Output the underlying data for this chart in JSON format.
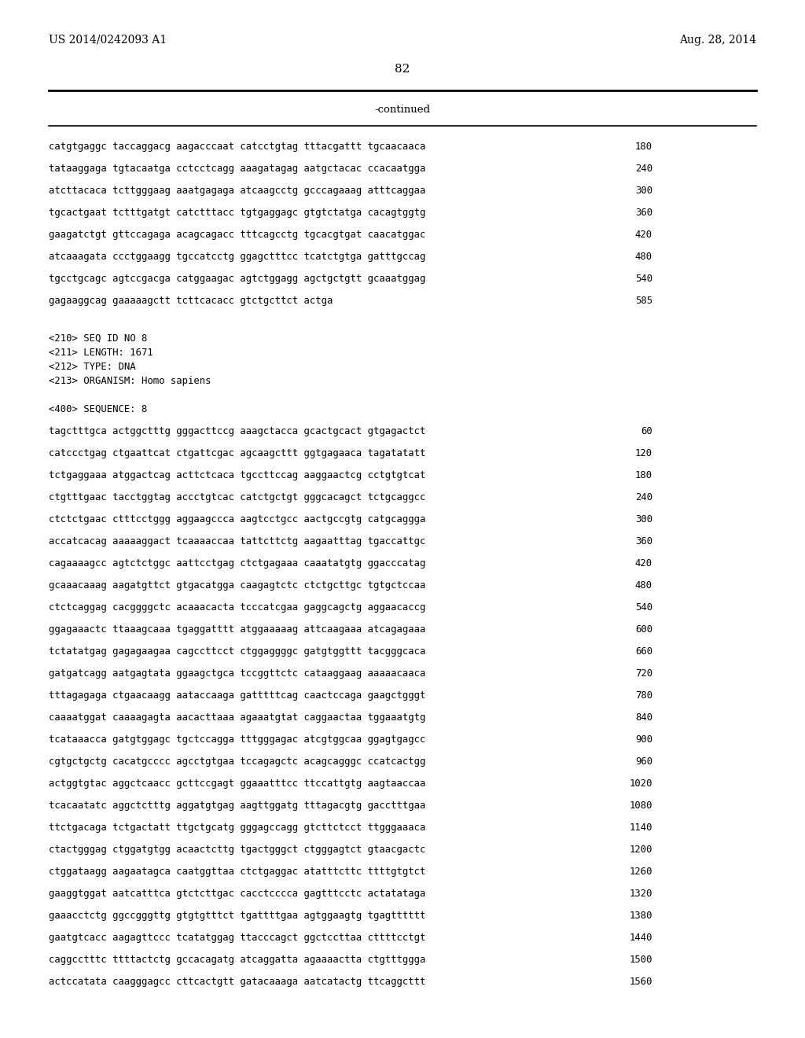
{
  "header_left": "US 2014/0242093 A1",
  "header_right": "Aug. 28, 2014",
  "page_number": "82",
  "continued_label": "-continued",
  "background_color": "#ffffff",
  "text_color": "#000000",
  "sequence_lines": [
    [
      "catgtgaggc taccaggacg aagacccaat catcctgtag tttacgattt tgcaacaaca",
      "180"
    ],
    [
      "tataaggaga tgtacaatga cctcctcagg aaagatagag aatgctacac ccacaatgga",
      "240"
    ],
    [
      "atcttacaca tcttgggaag aaatgagaga atcaagcctg gcccagaaag atttcaggaa",
      "300"
    ],
    [
      "tgcactgaat tctttgatgt catctttacc tgtgaggagc gtgtctatga cacagtggtg",
      "360"
    ],
    [
      "gaagatctgt gttccagaga acagcagacc tttcagcctg tgcacgtgat caacatggac",
      "420"
    ],
    [
      "atcaaagata ccctggaagg tgccatcctg ggagctttcc tcatctgtga gatttgccag",
      "480"
    ],
    [
      "tgcctgcagc agtccgacga catggaagac agtctggagg agctgctgtt gcaaatggag",
      "540"
    ],
    [
      "gagaaggcag gaaaaagctt tcttcacacc gtctgcttct actga",
      "585"
    ]
  ],
  "metadata_lines": [
    "<210> SEQ ID NO 8",
    "<211> LENGTH: 1671",
    "<212> TYPE: DNA",
    "<213> ORGANISM: Homo sapiens"
  ],
  "sequence_label": "<400> SEQUENCE: 8",
  "sequence_lines2": [
    [
      "tagctttgca actggctttg gggacttccg aaagctacca gcactgcact gtgagactct",
      "60"
    ],
    [
      "catccctgag ctgaattcat ctgattcgac agcaagcttt ggtgagaaca tagatatatt",
      "120"
    ],
    [
      "tctgaggaaa atggactcag acttctcaca tgccttccag aaggaactcg cctgtgtcat",
      "180"
    ],
    [
      "ctgtttgaac tacctggtag accctgtcac catctgctgt gggcacagct tctgcaggcc",
      "240"
    ],
    [
      "ctctctgaac ctttcctggg aggaagccca aagtcctgcc aactgccgtg catgcaggga",
      "300"
    ],
    [
      "accatcacag aaaaaggact tcaaaaccaa tattcttctg aagaatttag tgaccattgc",
      "360"
    ],
    [
      "cagaaaagcc agtctctggc aattcctgag ctctgagaaa caaatatgtg ggacccatag",
      "420"
    ],
    [
      "gcaaacaaag aagatgttct gtgacatgga caagagtctc ctctgcttgc tgtgctccaa",
      "480"
    ],
    [
      "ctctcaggag cacggggctc acaaacacta tcccatcgaa gaggcagctg aggaacaccg",
      "540"
    ],
    [
      "ggagaaactc ttaaagcaaa tgaggatttt atggaaaaag attcaagaaa atcagagaaa",
      "600"
    ],
    [
      "tctatatgag gagagaagaa cagccttcct ctggaggggc gatgtggttt tacgggcaca",
      "660"
    ],
    [
      "gatgatcagg aatgagtata ggaagctgca tccggttctc cataaggaag aaaaacaaca",
      "720"
    ],
    [
      "tttagagaga ctgaacaagg aataccaaga gatttttcag caactccaga gaagctgggt",
      "780"
    ],
    [
      "caaaatggat caaaagagta aacacttaaa agaaatgtat caggaactaa tggaaatgtg",
      "840"
    ],
    [
      "tcataaacca gatgtggagc tgctccagga tttgggagac atcgtggcaa ggagtgagcc",
      "900"
    ],
    [
      "cgtgctgctg cacatgcccc agcctgtgaa tccagagctc acagcagggc ccatcactgg",
      "960"
    ],
    [
      "actggtgtac aggctcaacc gcttccgagt ggaaatttcc ttccattgtg aagtaaccaa",
      "1020"
    ],
    [
      "tcacaatatc aggctctttg aggatgtgag aagttggatg tttagacgtg gacctttgaa",
      "1080"
    ],
    [
      "ttctgacaga tctgactatt ttgctgcatg gggagccagg gtcttctcct ttgggaaaca",
      "1140"
    ],
    [
      "ctactgggag ctggatgtgg acaactcttg tgactgggct ctgggagtct gtaacgactc",
      "1200"
    ],
    [
      "ctggataagg aagaatagca caatggttaa ctctgaggac atatttcttc ttttgtgtct",
      "1260"
    ],
    [
      "gaaggtggat aatcatttca gtctcttgac cacctcccca gagtttcctc actatataga",
      "1320"
    ],
    [
      "gaaacctctg ggccgggttg gtgtgtttct tgattttgaa agtggaagtg tgagtttttt",
      "1380"
    ],
    [
      "gaatgtcacc aagagttccc tcatatggag ttacccagct ggctccttaa cttttcctgt",
      "1440"
    ],
    [
      "caggcctttc ttttactctg gccacagatg atcaggatta agaaaactta ctgtttggga",
      "1500"
    ],
    [
      "actccatata caagggagcc cttcactgtt gatacaaaga aatcatactg ttcaggcttt",
      "1560"
    ]
  ]
}
